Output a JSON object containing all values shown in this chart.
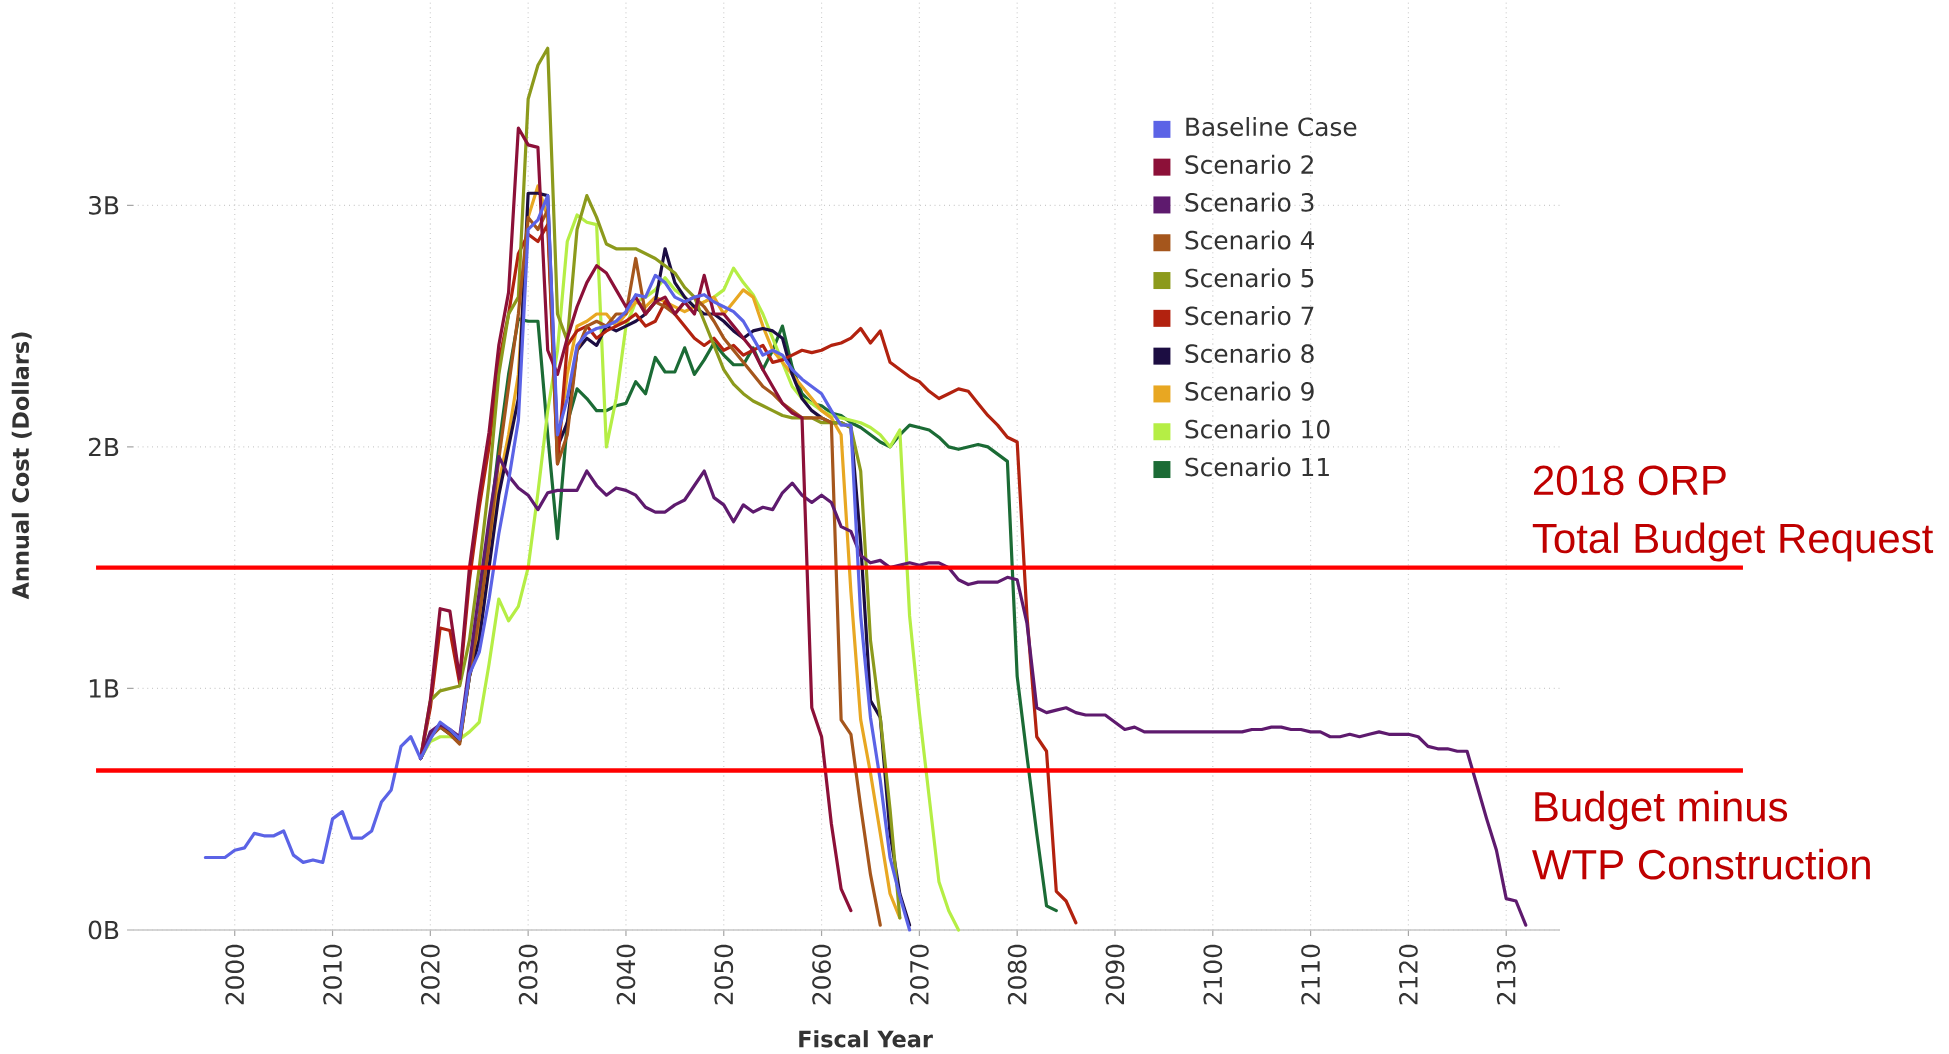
{
  "chart_data": {
    "type": "line",
    "xlabel": "Fiscal Year",
    "ylabel": "Annual Cost (Dollars)",
    "xlim": [
      1989.6,
      2135.5
    ],
    "ylim": [
      0,
      3.85
    ],
    "xticks": [
      2000,
      2010,
      2020,
      2030,
      2040,
      2050,
      2060,
      2070,
      2080,
      2090,
      2100,
      2110,
      2120,
      2130
    ],
    "yticks": [
      {
        "value": 0,
        "label": "0B"
      },
      {
        "value": 1,
        "label": "1B"
      },
      {
        "value": 2,
        "label": "2B"
      },
      {
        "value": 3,
        "label": "3B"
      }
    ],
    "grid": true,
    "legend": "top right",
    "series": [
      {
        "name": "Baseline Case",
        "color": "#5b63e6",
        "x": [
          1997,
          1998,
          1999,
          2000,
          2001,
          2002,
          2003,
          2004,
          2005,
          2006,
          2007,
          2008,
          2009,
          2010,
          2011,
          2012,
          2013,
          2014,
          2015,
          2016,
          2017,
          2018,
          2019,
          2020,
          2021,
          2022,
          2023,
          2024,
          2025,
          2026,
          2027,
          2028,
          2029,
          2030,
          2031,
          2032,
          2033,
          2034,
          2035,
          2036,
          2037,
          2038,
          2039,
          2040,
          2041,
          2042,
          2043,
          2044,
          2045,
          2046,
          2047,
          2048,
          2049,
          2050,
          2051,
          2052,
          2053,
          2054,
          2055,
          2056,
          2057,
          2058,
          2059,
          2060,
          2061,
          2062,
          2063,
          2064,
          2065,
          2066,
          2067,
          2068,
          2069
        ],
        "values": [
          0.3,
          0.3,
          0.3,
          0.33,
          0.34,
          0.4,
          0.39,
          0.39,
          0.41,
          0.31,
          0.28,
          0.29,
          0.28,
          0.46,
          0.49,
          0.38,
          0.38,
          0.41,
          0.53,
          0.58,
          0.76,
          0.8,
          0.71,
          0.79,
          0.86,
          0.83,
          0.79,
          1.06,
          1.15,
          1.37,
          1.64,
          1.86,
          2.11,
          2.9,
          2.94,
          3.04,
          2.05,
          2.2,
          2.42,
          2.47,
          2.49,
          2.5,
          2.52,
          2.56,
          2.63,
          2.62,
          2.71,
          2.68,
          2.62,
          2.6,
          2.62,
          2.63,
          2.6,
          2.58,
          2.56,
          2.52,
          2.45,
          2.38,
          2.4,
          2.38,
          2.32,
          2.28,
          2.25,
          2.22,
          2.15,
          2.09,
          2.09,
          1.3,
          0.88,
          0.62,
          0.3,
          0.14,
          0.0
        ]
      },
      {
        "name": "Scenario 2",
        "color": "#8c1038",
        "x": [
          2019,
          2020,
          2021,
          2022,
          2023,
          2024,
          2025,
          2026,
          2027,
          2028,
          2029,
          2030,
          2031,
          2032,
          2033,
          2034,
          2035,
          2036,
          2037,
          2038,
          2039,
          2040,
          2041,
          2042,
          2043,
          2044,
          2045,
          2046,
          2047,
          2048,
          2049,
          2050,
          2051,
          2052,
          2053,
          2054,
          2055,
          2056,
          2057,
          2058,
          2059,
          2060,
          2061,
          2062,
          2063
        ],
        "values": [
          0.71,
          0.95,
          1.33,
          1.32,
          1.04,
          1.5,
          1.8,
          2.06,
          2.42,
          2.64,
          3.32,
          3.25,
          3.24,
          2.4,
          2.3,
          2.45,
          2.58,
          2.68,
          2.75,
          2.72,
          2.65,
          2.58,
          2.62,
          2.55,
          2.6,
          2.62,
          2.55,
          2.6,
          2.55,
          2.71,
          2.55,
          2.55,
          2.5,
          2.45,
          2.4,
          2.32,
          2.25,
          2.18,
          2.14,
          2.12,
          0.92,
          0.8,
          0.44,
          0.17,
          0.08
        ]
      },
      {
        "name": "Scenario 3",
        "color": "#5e1a6e",
        "x": [
          2019,
          2020,
          2021,
          2022,
          2023,
          2024,
          2025,
          2026,
          2027,
          2028,
          2029,
          2030,
          2031,
          2032,
          2033,
          2034,
          2035,
          2036,
          2037,
          2038,
          2039,
          2040,
          2041,
          2042,
          2043,
          2044,
          2045,
          2046,
          2047,
          2048,
          2049,
          2050,
          2051,
          2052,
          2053,
          2054,
          2055,
          2056,
          2057,
          2058,
          2059,
          2060,
          2061,
          2062,
          2063,
          2064,
          2065,
          2066,
          2067,
          2068,
          2069,
          2070,
          2071,
          2072,
          2073,
          2074,
          2075,
          2076,
          2077,
          2078,
          2079,
          2080,
          2081,
          2082,
          2083,
          2084,
          2085,
          2086,
          2087,
          2088,
          2089,
          2090,
          2091,
          2092,
          2093,
          2094,
          2095,
          2096,
          2097,
          2098,
          2099,
          2100,
          2101,
          2102,
          2103,
          2104,
          2105,
          2106,
          2107,
          2108,
          2109,
          2110,
          2111,
          2112,
          2113,
          2114,
          2115,
          2116,
          2117,
          2118,
          2119,
          2120,
          2121,
          2122,
          2123,
          2124,
          2125,
          2126,
          2127,
          2128,
          2129,
          2130,
          2131,
          2132
        ],
        "values": [
          0.71,
          0.82,
          0.85,
          0.83,
          0.8,
          1.1,
          1.4,
          1.7,
          1.96,
          1.88,
          1.83,
          1.8,
          1.74,
          1.81,
          1.82,
          1.82,
          1.82,
          1.9,
          1.84,
          1.8,
          1.83,
          1.82,
          1.8,
          1.75,
          1.73,
          1.73,
          1.76,
          1.78,
          1.84,
          1.9,
          1.79,
          1.76,
          1.69,
          1.76,
          1.73,
          1.75,
          1.74,
          1.81,
          1.85,
          1.8,
          1.77,
          1.8,
          1.77,
          1.67,
          1.65,
          1.55,
          1.52,
          1.53,
          1.5,
          1.51,
          1.52,
          1.51,
          1.52,
          1.52,
          1.5,
          1.45,
          1.43,
          1.44,
          1.44,
          1.44,
          1.46,
          1.45,
          1.27,
          0.92,
          0.9,
          0.91,
          0.92,
          0.9,
          0.89,
          0.89,
          0.89,
          0.86,
          0.83,
          0.84,
          0.82,
          0.82,
          0.82,
          0.82,
          0.82,
          0.82,
          0.82,
          0.82,
          0.82,
          0.82,
          0.82,
          0.83,
          0.83,
          0.84,
          0.84,
          0.83,
          0.83,
          0.82,
          0.82,
          0.8,
          0.8,
          0.81,
          0.8,
          0.81,
          0.82,
          0.81,
          0.81,
          0.81,
          0.8,
          0.76,
          0.75,
          0.75,
          0.74,
          0.74,
          0.6,
          0.46,
          0.33,
          0.13,
          0.12,
          0.02
        ]
      },
      {
        "name": "Scenario 4",
        "color": "#a5561c",
        "x": [
          2019,
          2020,
          2021,
          2022,
          2023,
          2024,
          2025,
          2026,
          2027,
          2028,
          2029,
          2030,
          2031,
          2032,
          2033,
          2034,
          2035,
          2036,
          2037,
          2038,
          2039,
          2040,
          2041,
          2042,
          2043,
          2044,
          2045,
          2046,
          2047,
          2048,
          2049,
          2050,
          2051,
          2052,
          2053,
          2054,
          2055,
          2056,
          2057,
          2058,
          2059,
          2060,
          2061,
          2062,
          2063,
          2064,
          2065,
          2066
        ],
        "values": [
          0.71,
          0.8,
          0.84,
          0.81,
          0.77,
          1.05,
          1.3,
          1.6,
          1.95,
          2.25,
          2.55,
          2.95,
          2.9,
          2.98,
          1.93,
          2.05,
          2.4,
          2.5,
          2.52,
          2.5,
          2.55,
          2.55,
          2.78,
          2.55,
          2.6,
          2.58,
          2.55,
          2.6,
          2.62,
          2.58,
          2.52,
          2.45,
          2.4,
          2.35,
          2.3,
          2.25,
          2.22,
          2.18,
          2.15,
          2.12,
          2.12,
          2.12,
          2.1,
          0.87,
          0.81,
          0.51,
          0.23,
          0.02
        ]
      },
      {
        "name": "Scenario 5",
        "color": "#8c9a1c",
        "x": [
          2019,
          2020,
          2021,
          2022,
          2023,
          2024,
          2025,
          2026,
          2027,
          2028,
          2029,
          2030,
          2031,
          2032,
          2033,
          2034,
          2035,
          2036,
          2037,
          2038,
          2039,
          2040,
          2041,
          2042,
          2043,
          2044,
          2045,
          2046,
          2047,
          2048,
          2049,
          2050,
          2051,
          2052,
          2053,
          2054,
          2055,
          2056,
          2057,
          2058,
          2059,
          2060,
          2061,
          2062,
          2063,
          2064,
          2065,
          2066,
          2067,
          2068
        ],
        "values": [
          0.71,
          0.95,
          0.99,
          1.0,
          1.01,
          1.2,
          1.5,
          1.85,
          2.3,
          2.55,
          2.62,
          3.44,
          3.58,
          3.65,
          2.55,
          2.44,
          2.9,
          3.04,
          2.95,
          2.84,
          2.82,
          2.82,
          2.82,
          2.8,
          2.78,
          2.75,
          2.72,
          2.66,
          2.62,
          2.52,
          2.42,
          2.32,
          2.26,
          2.22,
          2.19,
          2.17,
          2.15,
          2.13,
          2.12,
          2.12,
          2.12,
          2.1,
          2.1,
          2.1,
          2.08,
          1.9,
          1.2,
          0.88,
          0.5,
          0.05
        ]
      },
      {
        "name": "Scenario 7",
        "color": "#b2220f",
        "x": [
          2019,
          2020,
          2021,
          2022,
          2023,
          2024,
          2025,
          2026,
          2027,
          2028,
          2029,
          2030,
          2031,
          2032,
          2033,
          2034,
          2035,
          2036,
          2037,
          2038,
          2039,
          2040,
          2041,
          2042,
          2043,
          2044,
          2045,
          2046,
          2047,
          2048,
          2049,
          2050,
          2051,
          2052,
          2053,
          2054,
          2055,
          2056,
          2057,
          2058,
          2059,
          2060,
          2061,
          2062,
          2063,
          2064,
          2065,
          2066,
          2067,
          2068,
          2069,
          2070,
          2071,
          2072,
          2073,
          2074,
          2075,
          2076,
          2077,
          2078,
          2079,
          2080,
          2081,
          2082,
          2083,
          2084,
          2085,
          2086
        ],
        "values": [
          0.71,
          0.92,
          1.25,
          1.24,
          1.02,
          1.45,
          1.75,
          2.0,
          2.35,
          2.55,
          2.8,
          2.88,
          2.85,
          2.92,
          1.93,
          2.42,
          2.48,
          2.5,
          2.45,
          2.48,
          2.5,
          2.52,
          2.55,
          2.5,
          2.52,
          2.6,
          2.55,
          2.5,
          2.45,
          2.42,
          2.45,
          2.4,
          2.42,
          2.38,
          2.4,
          2.42,
          2.35,
          2.36,
          2.38,
          2.4,
          2.39,
          2.4,
          2.42,
          2.43,
          2.45,
          2.49,
          2.43,
          2.48,
          2.35,
          2.32,
          2.29,
          2.27,
          2.23,
          2.2,
          2.22,
          2.24,
          2.23,
          2.18,
          2.13,
          2.09,
          2.04,
          2.02,
          1.3,
          0.8,
          0.74,
          0.16,
          0.12,
          0.03
        ]
      },
      {
        "name": "Scenario 8",
        "color": "#1c0d42",
        "x": [
          2019,
          2020,
          2021,
          2022,
          2023,
          2024,
          2025,
          2026,
          2027,
          2028,
          2029,
          2030,
          2031,
          2032,
          2033,
          2034,
          2035,
          2036,
          2037,
          2038,
          2039,
          2040,
          2041,
          2042,
          2043,
          2044,
          2045,
          2046,
          2047,
          2048,
          2049,
          2050,
          2051,
          2052,
          2053,
          2054,
          2055,
          2056,
          2057,
          2058,
          2059,
          2060,
          2061,
          2062,
          2063,
          2064,
          2065,
          2066,
          2067,
          2068,
          2069
        ],
        "values": [
          0.71,
          0.8,
          0.85,
          0.82,
          0.78,
          1.05,
          1.2,
          1.5,
          1.8,
          2.0,
          2.2,
          3.05,
          3.05,
          3.04,
          2.0,
          2.1,
          2.4,
          2.45,
          2.42,
          2.5,
          2.48,
          2.5,
          2.52,
          2.55,
          2.6,
          2.82,
          2.68,
          2.62,
          2.58,
          2.55,
          2.55,
          2.52,
          2.48,
          2.45,
          2.48,
          2.49,
          2.48,
          2.45,
          2.3,
          2.2,
          2.15,
          2.12,
          2.1,
          2.1,
          2.08,
          1.6,
          0.95,
          0.88,
          0.4,
          0.15,
          0.02
        ]
      },
      {
        "name": "Scenario 9",
        "color": "#e8a722",
        "x": [
          2024,
          2025,
          2026,
          2027,
          2028,
          2029,
          2030,
          2031,
          2032,
          2033,
          2034,
          2035,
          2036,
          2037,
          2038,
          2039,
          2040,
          2041,
          2042,
          2043,
          2044,
          2045,
          2046,
          2047,
          2048,
          2049,
          2050,
          2051,
          2052,
          2053,
          2054,
          2055,
          2056,
          2057,
          2058,
          2059,
          2060,
          2061,
          2062,
          2063,
          2064,
          2065,
          2066,
          2067,
          2068
        ],
        "values": [
          1.05,
          1.25,
          1.55,
          1.85,
          2.05,
          2.3,
          2.95,
          3.08,
          2.95,
          1.98,
          2.3,
          2.5,
          2.52,
          2.55,
          2.55,
          2.5,
          2.55,
          2.6,
          2.58,
          2.62,
          2.6,
          2.58,
          2.56,
          2.58,
          2.6,
          2.62,
          2.55,
          2.6,
          2.65,
          2.62,
          2.5,
          2.4,
          2.35,
          2.3,
          2.25,
          2.2,
          2.15,
          2.12,
          2.05,
          1.4,
          0.87,
          0.65,
          0.4,
          0.15,
          0.05
        ]
      },
      {
        "name": "Scenario 10",
        "color": "#b5ee45",
        "x": [
          2019,
          2020,
          2021,
          2022,
          2023,
          2024,
          2025,
          2026,
          2027,
          2028,
          2029,
          2030,
          2031,
          2032,
          2033,
          2034,
          2035,
          2036,
          2037,
          2038,
          2039,
          2040,
          2041,
          2042,
          2043,
          2044,
          2045,
          2046,
          2047,
          2048,
          2049,
          2050,
          2051,
          2052,
          2053,
          2054,
          2055,
          2056,
          2057,
          2058,
          2059,
          2060,
          2061,
          2062,
          2063,
          2064,
          2065,
          2066,
          2067,
          2068,
          2069,
          2070,
          2071,
          2072,
          2073,
          2074
        ],
        "values": [
          0.71,
          0.78,
          0.8,
          0.8,
          0.79,
          0.82,
          0.86,
          1.1,
          1.37,
          1.28,
          1.34,
          1.5,
          1.81,
          2.15,
          2.4,
          2.85,
          2.96,
          2.93,
          2.92,
          2.0,
          2.2,
          2.5,
          2.6,
          2.62,
          2.65,
          2.7,
          2.65,
          2.62,
          2.58,
          2.6,
          2.62,
          2.65,
          2.74,
          2.68,
          2.63,
          2.55,
          2.45,
          2.35,
          2.25,
          2.2,
          2.18,
          2.15,
          2.13,
          2.12,
          2.11,
          2.1,
          2.08,
          2.05,
          2.0,
          2.07,
          1.3,
          0.9,
          0.55,
          0.2,
          0.08,
          0.0
        ]
      },
      {
        "name": "Scenario 11",
        "color": "#1b6b35",
        "x": [
          2019,
          2020,
          2021,
          2022,
          2023,
          2024,
          2025,
          2026,
          2027,
          2028,
          2029,
          2030,
          2031,
          2032,
          2033,
          2034,
          2035,
          2036,
          2037,
          2038,
          2039,
          2040,
          2041,
          2042,
          2043,
          2044,
          2045,
          2046,
          2047,
          2048,
          2049,
          2050,
          2051,
          2052,
          2053,
          2054,
          2055,
          2056,
          2057,
          2058,
          2059,
          2060,
          2061,
          2062,
          2063,
          2064,
          2065,
          2066,
          2067,
          2068,
          2069,
          2070,
          2071,
          2072,
          2073,
          2074,
          2075,
          2076,
          2077,
          2078,
          2079,
          2080,
          2081,
          2082,
          2083,
          2084
        ],
        "values": [
          0.71,
          0.8,
          0.84,
          0.81,
          0.78,
          1.05,
          1.3,
          1.65,
          2.0,
          2.3,
          2.53,
          2.52,
          2.52,
          2.05,
          1.62,
          2.1,
          2.24,
          2.2,
          2.15,
          2.15,
          2.17,
          2.18,
          2.27,
          2.22,
          2.37,
          2.31,
          2.31,
          2.41,
          2.3,
          2.36,
          2.43,
          2.38,
          2.34,
          2.34,
          2.41,
          2.32,
          2.4,
          2.5,
          2.33,
          2.22,
          2.18,
          2.17,
          2.14,
          2.13,
          2.1,
          2.08,
          2.05,
          2.02,
          2.0,
          2.05,
          2.09,
          2.08,
          2.07,
          2.04,
          2.0,
          1.99,
          2.0,
          2.01,
          2.0,
          1.97,
          1.94,
          1.05,
          0.72,
          0.4,
          0.1,
          0.08
        ]
      }
    ],
    "ref_lines": [
      {
        "axis": "y",
        "value": 1.5,
        "label": "2018 ORP Total Budget Request",
        "color": "#ff0000"
      },
      {
        "axis": "y",
        "value": 0.66,
        "label": "Budget minus WTP Construction",
        "color": "#ff0000"
      }
    ]
  }
}
